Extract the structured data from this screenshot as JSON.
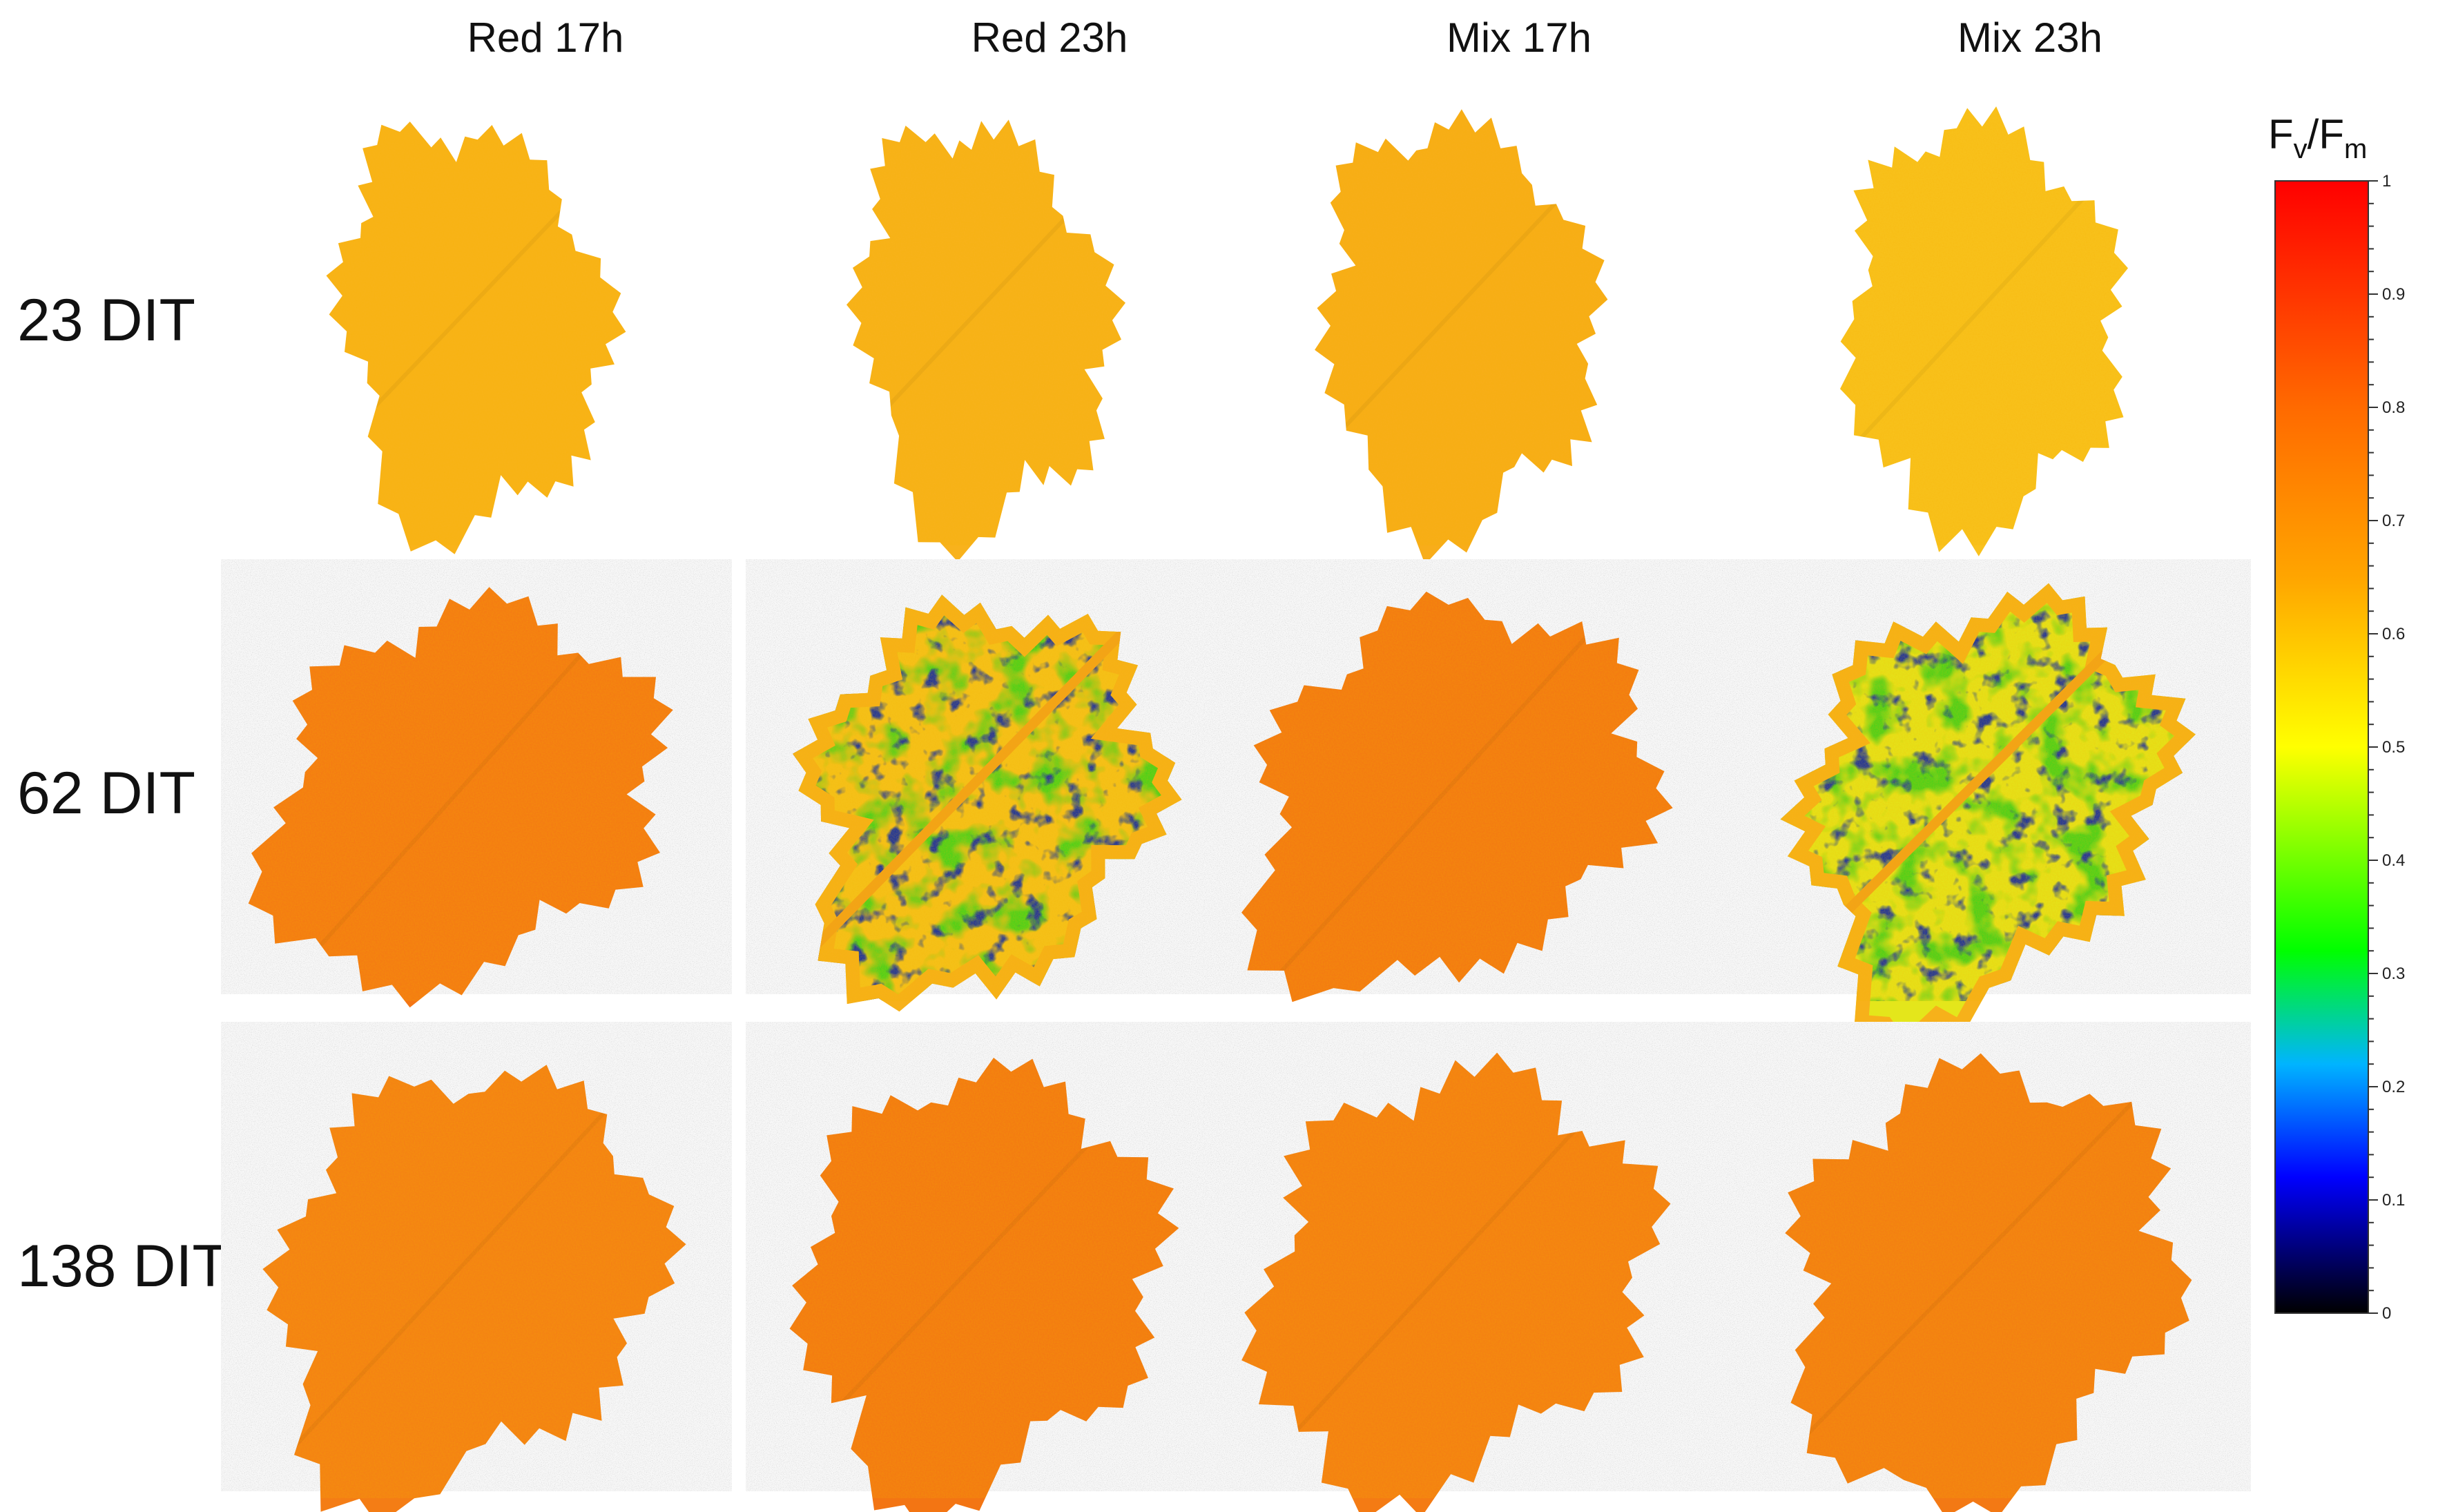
{
  "columns": [
    "Red 17h",
    "Red 23h",
    "Mix 17h",
    "Mix 23h"
  ],
  "rows": [
    "23 DIT",
    "62 DIT",
    "138 DIT"
  ],
  "colorbar": {
    "title_main": "F",
    "title_sub_v": "v",
    "title_slash": "/F",
    "title_sub_m": "m",
    "ticks": [
      "1",
      "0.9",
      "0.8",
      "0.7",
      "0.6",
      "0.5",
      "0.4",
      "0.3",
      "0.2",
      "0.1",
      "0"
    ],
    "stops": [
      {
        "value": 0.0,
        "color": "#000000"
      },
      {
        "value": 0.12,
        "color": "#0000ff"
      },
      {
        "value": 0.22,
        "color": "#00b4ff"
      },
      {
        "value": 0.32,
        "color": "#00ff00"
      },
      {
        "value": 0.5,
        "color": "#ffff00"
      },
      {
        "value": 0.65,
        "color": "#ffa500"
      },
      {
        "value": 0.8,
        "color": "#ff6a00"
      },
      {
        "value": 1.0,
        "color": "#ff0000"
      }
    ]
  },
  "panels": [
    {
      "row": 0,
      "col": 0,
      "fill": "#f9b31a",
      "damage": false
    },
    {
      "row": 0,
      "col": 1,
      "fill": "#f8b21c",
      "damage": false
    },
    {
      "row": 0,
      "col": 2,
      "fill": "#f8ad1a",
      "damage": false
    },
    {
      "row": 0,
      "col": 3,
      "fill": "#f9c21e",
      "damage": false
    },
    {
      "row": 1,
      "col": 0,
      "fill": "#f47614",
      "damage": false
    },
    {
      "row": 1,
      "col": 1,
      "fill": "#f5c21b",
      "damage": true
    },
    {
      "row": 1,
      "col": 2,
      "fill": "#f37513",
      "damage": false
    },
    {
      "row": 1,
      "col": 3,
      "fill": "#e4e61b",
      "damage": true
    },
    {
      "row": 2,
      "col": 0,
      "fill": "#f47d15",
      "damage": false
    },
    {
      "row": 2,
      "col": 1,
      "fill": "#f37513",
      "damage": false
    },
    {
      "row": 2,
      "col": 2,
      "fill": "#f47b14",
      "damage": false
    },
    {
      "row": 2,
      "col": 3,
      "fill": "#f37914",
      "damage": false
    }
  ]
}
